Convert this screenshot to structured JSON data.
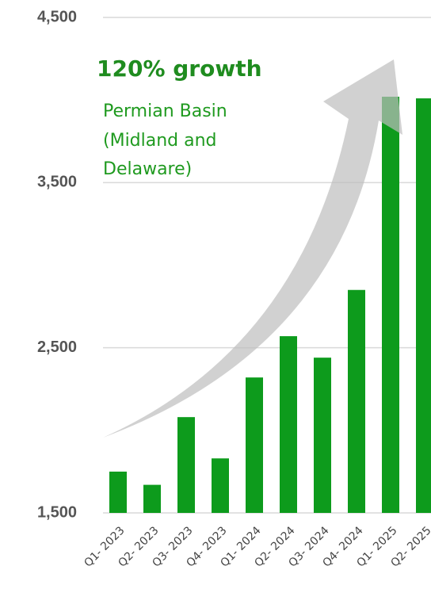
{
  "chart_data": {
    "type": "bar",
    "title": "120% growth",
    "subtitle": [
      "Permian Basin",
      "(Midland and",
      "Delaware)"
    ],
    "categories": [
      "Q1- 2023",
      "Q2- 2023",
      "Q3- 2023",
      "Q4- 2023",
      "Q1- 2024",
      "Q2- 2024",
      "Q3- 2024",
      "Q4- 2024",
      "Q1- 2025",
      "Q2- 2025"
    ],
    "values": [
      1750,
      1670,
      2080,
      1830,
      2320,
      2570,
      2440,
      2850,
      4020,
      4010
    ],
    "color": "#0d9b1c",
    "ylim": [
      1500,
      4500
    ],
    "yticks": [
      {
        "value": 1500,
        "label": "1,500"
      },
      {
        "value": 2500,
        "label": "2,500"
      },
      {
        "value": 3500,
        "label": "3,500"
      },
      {
        "value": 4500,
        "label": "4,500"
      }
    ],
    "grid": true
  }
}
